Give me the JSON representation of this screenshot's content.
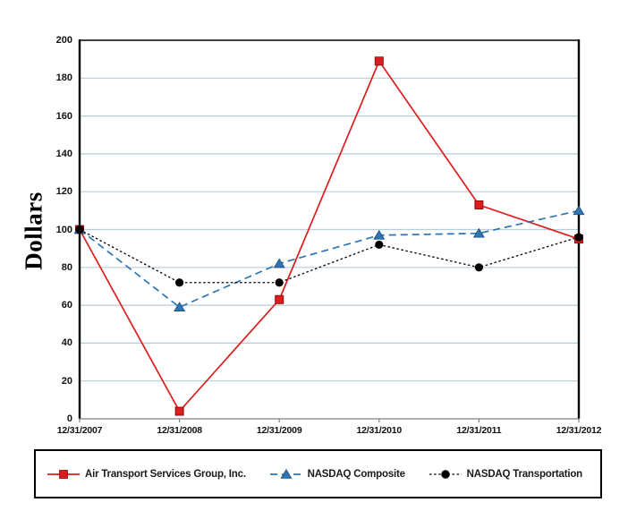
{
  "page": {
    "background": "#ffffff"
  },
  "chart_data": {
    "type": "line",
    "title": "",
    "xlabel": "",
    "ylabel": "Dollars",
    "categories": [
      "12/31/2007",
      "12/31/2008",
      "12/31/2009",
      "12/31/2010",
      "12/31/2011",
      "12/31/2012"
    ],
    "series": [
      {
        "name": "Air Transport Services Group, Inc.",
        "color": "#dd1d1d",
        "marker_edge": "#8f0f0f",
        "marker": "square",
        "line_style": "solid",
        "values": [
          100,
          4,
          63,
          189,
          113,
          95
        ]
      },
      {
        "name": "NASDAQ Composite",
        "color": "#2e75b6",
        "marker_edge": "#1c4a77",
        "marker": "triangle",
        "line_style": "dashed",
        "values": [
          100,
          59,
          82,
          97,
          98,
          110
        ]
      },
      {
        "name": "NASDAQ Transportation",
        "color": "#000000",
        "marker_edge": "#000000",
        "marker": "circle",
        "line_style": "dotted",
        "values": [
          100,
          72,
          72,
          92,
          80,
          96
        ]
      }
    ],
    "ylim": [
      0,
      200
    ],
    "y_ticks": [
      0,
      20,
      40,
      60,
      80,
      100,
      120,
      140,
      160,
      180,
      200
    ],
    "grid": true,
    "gridline_color": "#b9cdd7",
    "axis_color": "#000000",
    "baseline_color": "#808080",
    "legend_position": "bottom"
  }
}
